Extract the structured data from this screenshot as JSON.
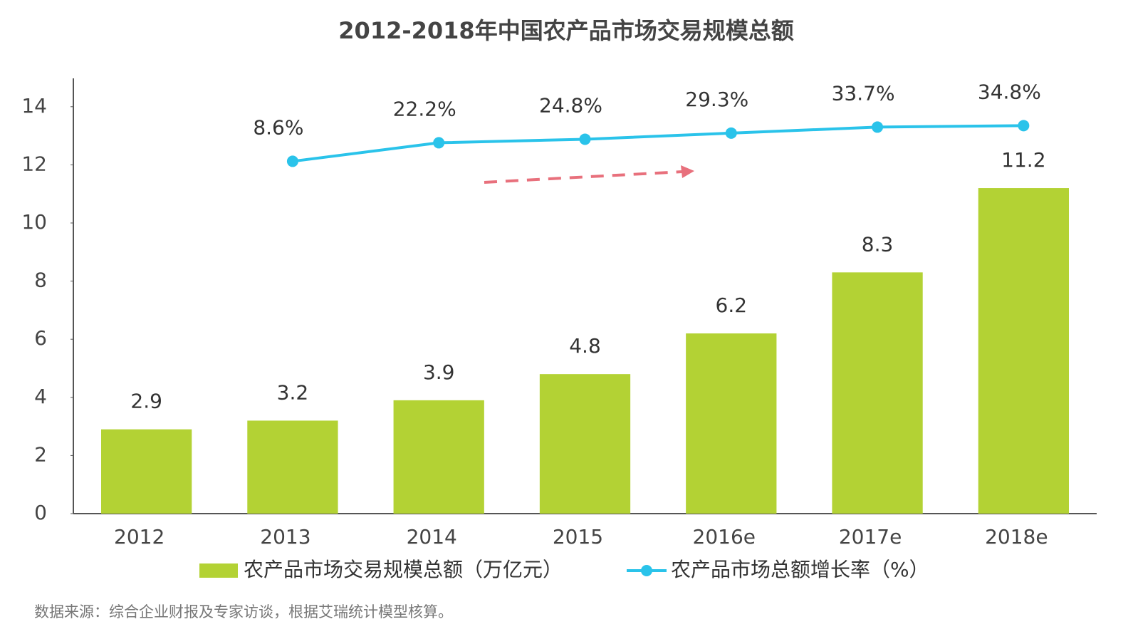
{
  "chart_data": {
    "type": "bar",
    "title": "2012-2018年中国农产品市场交易规模总额",
    "categories": [
      "2012",
      "2013",
      "2014",
      "2015",
      "2016e",
      "2017e",
      "2018e"
    ],
    "series": [
      {
        "name": "农产品市场交易规模总额（万亿元）",
        "type": "bar",
        "color": "#b3d234",
        "values": [
          2.9,
          3.2,
          3.9,
          4.8,
          6.2,
          8.3,
          11.2
        ]
      },
      {
        "name": "农产品市场总额增长率（%）",
        "type": "line",
        "axis": "y2",
        "color": "#2ac3ea",
        "values": [
          null,
          8.6,
          22.2,
          24.8,
          29.3,
          33.7,
          34.8
        ],
        "value_labels": [
          null,
          "8.6%",
          "22.2%",
          "24.8%",
          "29.3%",
          "33.7%",
          "34.8%"
        ]
      }
    ],
    "ylim": [
      0,
      15
    ],
    "yticks": [
      0,
      2,
      4,
      6,
      8,
      10,
      12,
      14
    ],
    "y2lim": [
      -250,
      70
    ],
    "legend": "bottom",
    "source": "数据来源：综合企业财报及专家访谈，根据艾瑞统计模型核算。"
  }
}
